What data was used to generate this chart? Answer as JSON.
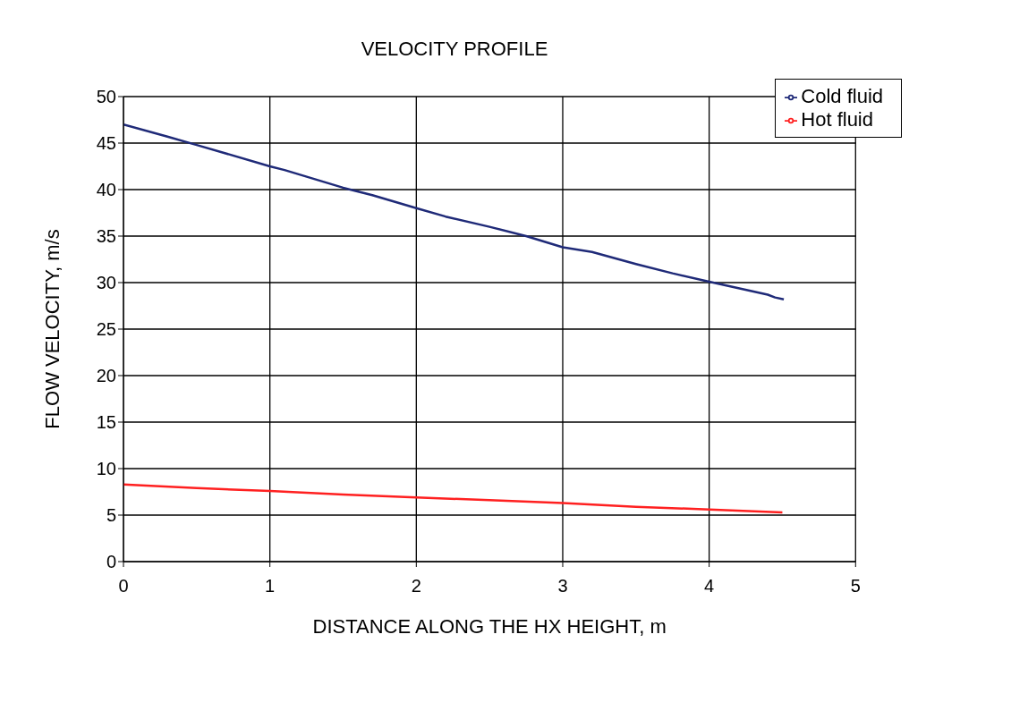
{
  "chart_data": {
    "type": "line",
    "title": "VELOCITY PROFILE",
    "xlabel": "DISTANCE ALONG THE HX HEIGHT, m",
    "ylabel": "FLOW VELOCITY, m/s",
    "series": [
      {
        "name": "Hot fluid",
        "color": "#ff2020",
        "x": [
          0,
          0.5,
          1,
          1.5,
          2,
          2.5,
          3,
          3.5,
          4,
          4.5
        ],
        "values": [
          8.3,
          7.9,
          7.6,
          7.2,
          6.9,
          6.6,
          6.3,
          5.9,
          5.6,
          5.3
        ]
      },
      {
        "name": "Cold fluid",
        "color": "#1f2a78",
        "x": [
          0,
          0.3,
          0.5,
          1,
          1.1,
          1.5,
          1.7,
          2,
          2.2,
          2.5,
          2.75,
          3,
          3.2,
          3.5,
          3.75,
          4,
          4.2,
          4.4,
          4.45,
          4.51
        ],
        "values": [
          47,
          45.7,
          44.8,
          42.5,
          42.1,
          40.2,
          39.4,
          38,
          37.1,
          36,
          35,
          33.8,
          33.3,
          32,
          31,
          30.1,
          29.4,
          28.7,
          28.4,
          28.2
        ]
      }
    ],
    "xlim": [
      0,
      5
    ],
    "xticks": [
      0,
      1,
      2,
      3,
      4,
      5
    ],
    "ylim": [
      0,
      50
    ],
    "yticks": [
      0,
      5,
      10,
      15,
      20,
      25,
      30,
      35,
      40,
      45,
      50
    ],
    "grid": true,
    "legend": "top right",
    "marker": "none",
    "line_style": "solid"
  }
}
